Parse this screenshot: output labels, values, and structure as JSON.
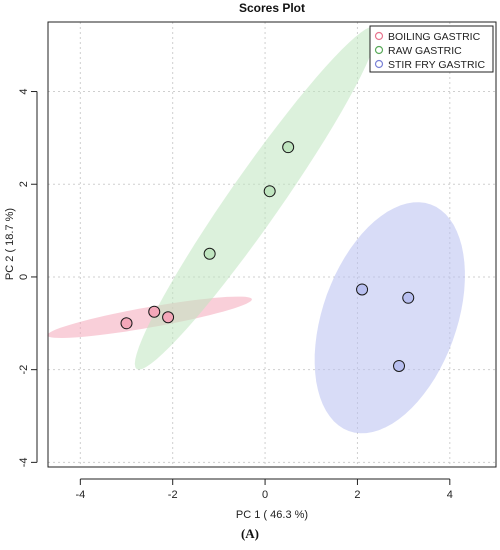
{
  "figure_label": "(A)",
  "chart_data": {
    "type": "scatter",
    "title": "Scores Plot",
    "xlabel": "PC 1 ( 46.3 %)",
    "ylabel": "PC 2 ( 18.7 %)",
    "xlim": [
      -4.7,
      5.0
    ],
    "ylim": [
      -4.1,
      5.5
    ],
    "xticks": [
      -4,
      -2,
      0,
      2,
      4
    ],
    "yticks": [
      -4,
      -2,
      0,
      2,
      4
    ],
    "grid": true,
    "legend_position": "top-right",
    "series": [
      {
        "name": "BOILING GASTRIC",
        "color": "#e8758f",
        "fill": "#f4a7b9",
        "points": [
          [
            -3.0,
            -1.0
          ],
          [
            -2.4,
            -0.75
          ],
          [
            -2.1,
            -0.87
          ]
        ],
        "ellipse": {
          "center": [
            -2.5,
            -0.87
          ],
          "rx": 2.25,
          "ry": 0.22,
          "angle": 10
        }
      },
      {
        "name": "RAW GASTRIC",
        "color": "#5aa95a",
        "fill": "#bfe5bf",
        "points": [
          [
            -1.2,
            0.5
          ],
          [
            0.1,
            1.85
          ],
          [
            0.5,
            2.8
          ]
        ],
        "ellipse": {
          "center": [
            -0.2,
            1.7
          ],
          "rx": 4.5,
          "ry": 0.55,
          "angle": 55
        }
      },
      {
        "name": "STIR FRY GASTRIC",
        "color": "#7a82d6",
        "fill": "#b8bff0",
        "points": [
          [
            2.1,
            -0.27
          ],
          [
            3.1,
            -0.45
          ],
          [
            2.9,
            -1.92
          ]
        ],
        "ellipse": {
          "center": [
            2.7,
            -0.88
          ],
          "rx": 1.45,
          "ry": 2.6,
          "angle": -20
        }
      }
    ]
  }
}
